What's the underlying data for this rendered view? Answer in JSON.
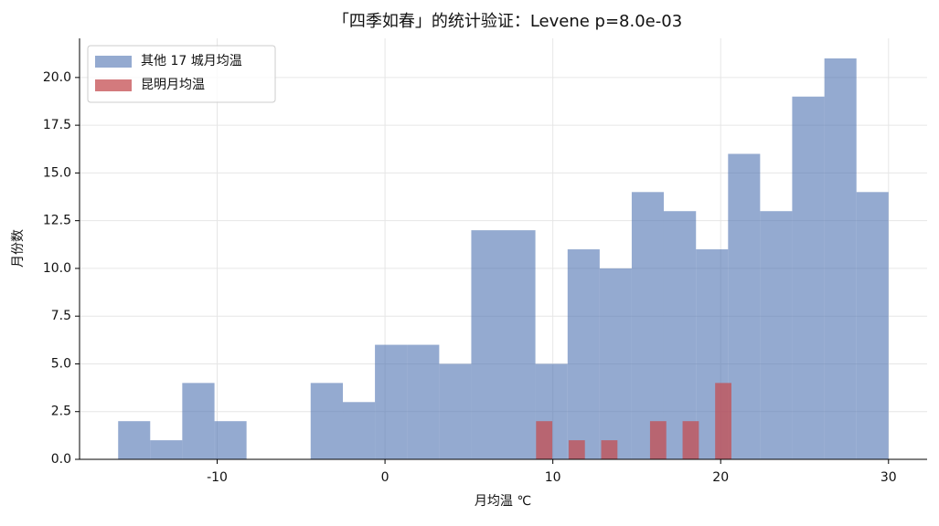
{
  "chart_data": {
    "type": "histogram",
    "title": "「四季如春」的统计验证：Levene p=8.0e-03",
    "x_label": "月均温 ℃",
    "y_label": "月份数",
    "series": [
      {
        "name": "其他 17 城月均温",
        "color": "#4c72b0",
        "bins": [
          -15.9,
          -13.99,
          -12.08,
          -10.16,
          -8.25,
          -6.34,
          -4.43,
          -2.51,
          -0.6,
          1.31,
          3.23,
          5.14,
          7.05,
          8.96,
          10.88,
          12.79,
          14.7,
          16.61,
          18.53,
          20.44,
          22.35,
          24.26,
          26.18,
          28.09,
          30.0
        ],
        "values": [
          2,
          1,
          4,
          2,
          0,
          0,
          4,
          3,
          6,
          6,
          5,
          12,
          12,
          5,
          11,
          10,
          14,
          13,
          11,
          16,
          13,
          19,
          21,
          14
        ]
      },
      {
        "name": "昆明月均温",
        "color": "#c44e52",
        "bins": [
          9.0,
          9.97,
          10.94,
          11.91,
          12.88,
          13.85,
          14.82,
          15.79,
          16.76,
          17.73,
          18.7,
          19.67,
          20.64
        ],
        "values": [
          2,
          0,
          1,
          0,
          1,
          0,
          0,
          2,
          0,
          2,
          0,
          4
        ]
      }
    ],
    "xlim": [
      -18.2,
      32.3
    ],
    "ylim": [
      0,
      22.05
    ],
    "xticks": [
      -10,
      0,
      10,
      20,
      30
    ],
    "yticks": [
      {
        "value": 0,
        "label": "0.0"
      },
      {
        "value": 2.5,
        "label": "2.5"
      },
      {
        "value": 5,
        "label": "5.0"
      },
      {
        "value": 7.5,
        "label": "7.5"
      },
      {
        "value": 10,
        "label": "10.0"
      },
      {
        "value": 12.5,
        "label": "12.5"
      },
      {
        "value": 15,
        "label": "15.0"
      },
      {
        "value": 17.5,
        "label": "17.5"
      },
      {
        "value": 20,
        "label": "20.0"
      }
    ],
    "grid": true,
    "legend": "upper-left"
  }
}
